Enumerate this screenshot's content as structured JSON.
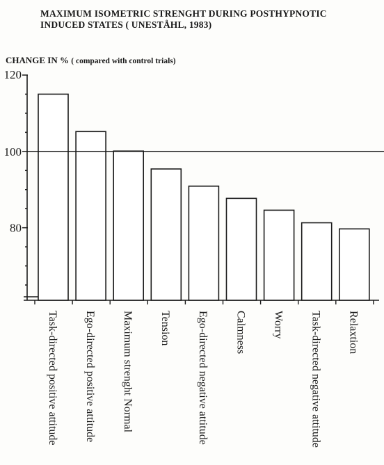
{
  "chart_data": {
    "type": "bar",
    "title": "MAXIMUM ISOMETRIC STRENGHT DURING POSTHYPNOTIC",
    "title_line2": "INDUCED STATES ( UNESTÅHL, 1983)",
    "ylabel": "CHANGE IN %",
    "ylabel_sub": "( compared with control trials)",
    "xlabel": "",
    "ylim": [
      61,
      120
    ],
    "yticks": [
      80,
      100,
      120
    ],
    "reference_line": 100,
    "grid": false,
    "categories": [
      "Task-directed positive attitude",
      "Ego-directed positive attitude",
      "Maximum strenght Normal",
      "Tension",
      "Ego-directed negative attitude",
      "Calmness",
      "Worry",
      "Task-directed negative attitude",
      "Relaxtion"
    ],
    "series": [
      {
        "values": [
          115,
          105.2,
          100.1,
          95.4,
          90.9,
          87.7,
          84.6,
          81.3,
          79.7
        ]
      }
    ]
  },
  "colors": {
    "ink": "#1a1a1a",
    "bar_fill": "#ffffff",
    "background": "#fdfdfb"
  }
}
